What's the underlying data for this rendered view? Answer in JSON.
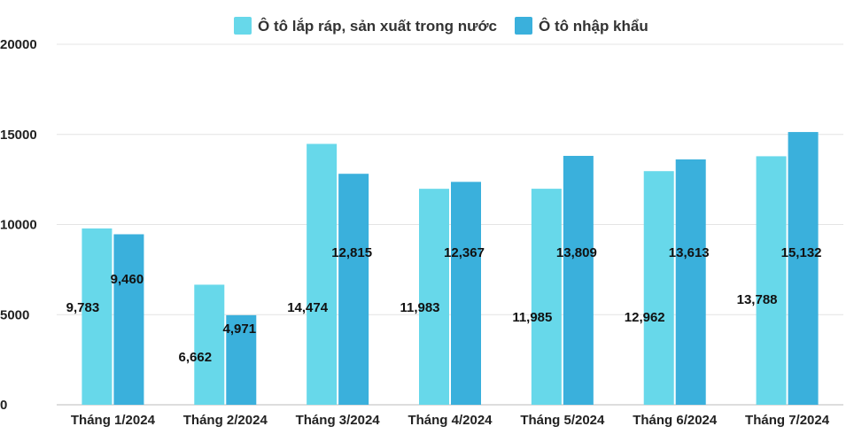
{
  "chart_data": {
    "type": "bar",
    "categories": [
      "Tháng 1/2024",
      "Tháng 2/2024",
      "Tháng 3/2024",
      "Tháng 4/2024",
      "Tháng 5/2024",
      "Tháng 6/2024",
      "Tháng 7/2024"
    ],
    "series": [
      {
        "name": "Ô tô lắp ráp, sản xuất trong nước",
        "color": "#67d8ea",
        "values": [
          9783,
          6662,
          14474,
          11983,
          11985,
          12962,
          13788
        ],
        "labels": [
          "9,783",
          "6,662",
          "14,474",
          "11,983",
          "11,985",
          "12,962",
          "13,788"
        ]
      },
      {
        "name": "Ô tô nhập khẩu",
        "color": "#3ab0dc",
        "values": [
          9460,
          4971,
          12815,
          12367,
          13809,
          13613,
          15132
        ],
        "labels": [
          "9,460",
          "4,971",
          "12,815",
          "12,367",
          "13,809",
          "13,613",
          "15,132"
        ]
      }
    ],
    "yticks": [
      "0",
      "5000",
      "10000",
      "15000",
      "20000"
    ],
    "ylim": [
      0,
      20000
    ],
    "xlabel": "",
    "ylabel": "",
    "title": "",
    "grid": true,
    "legend_position": "top-center"
  }
}
